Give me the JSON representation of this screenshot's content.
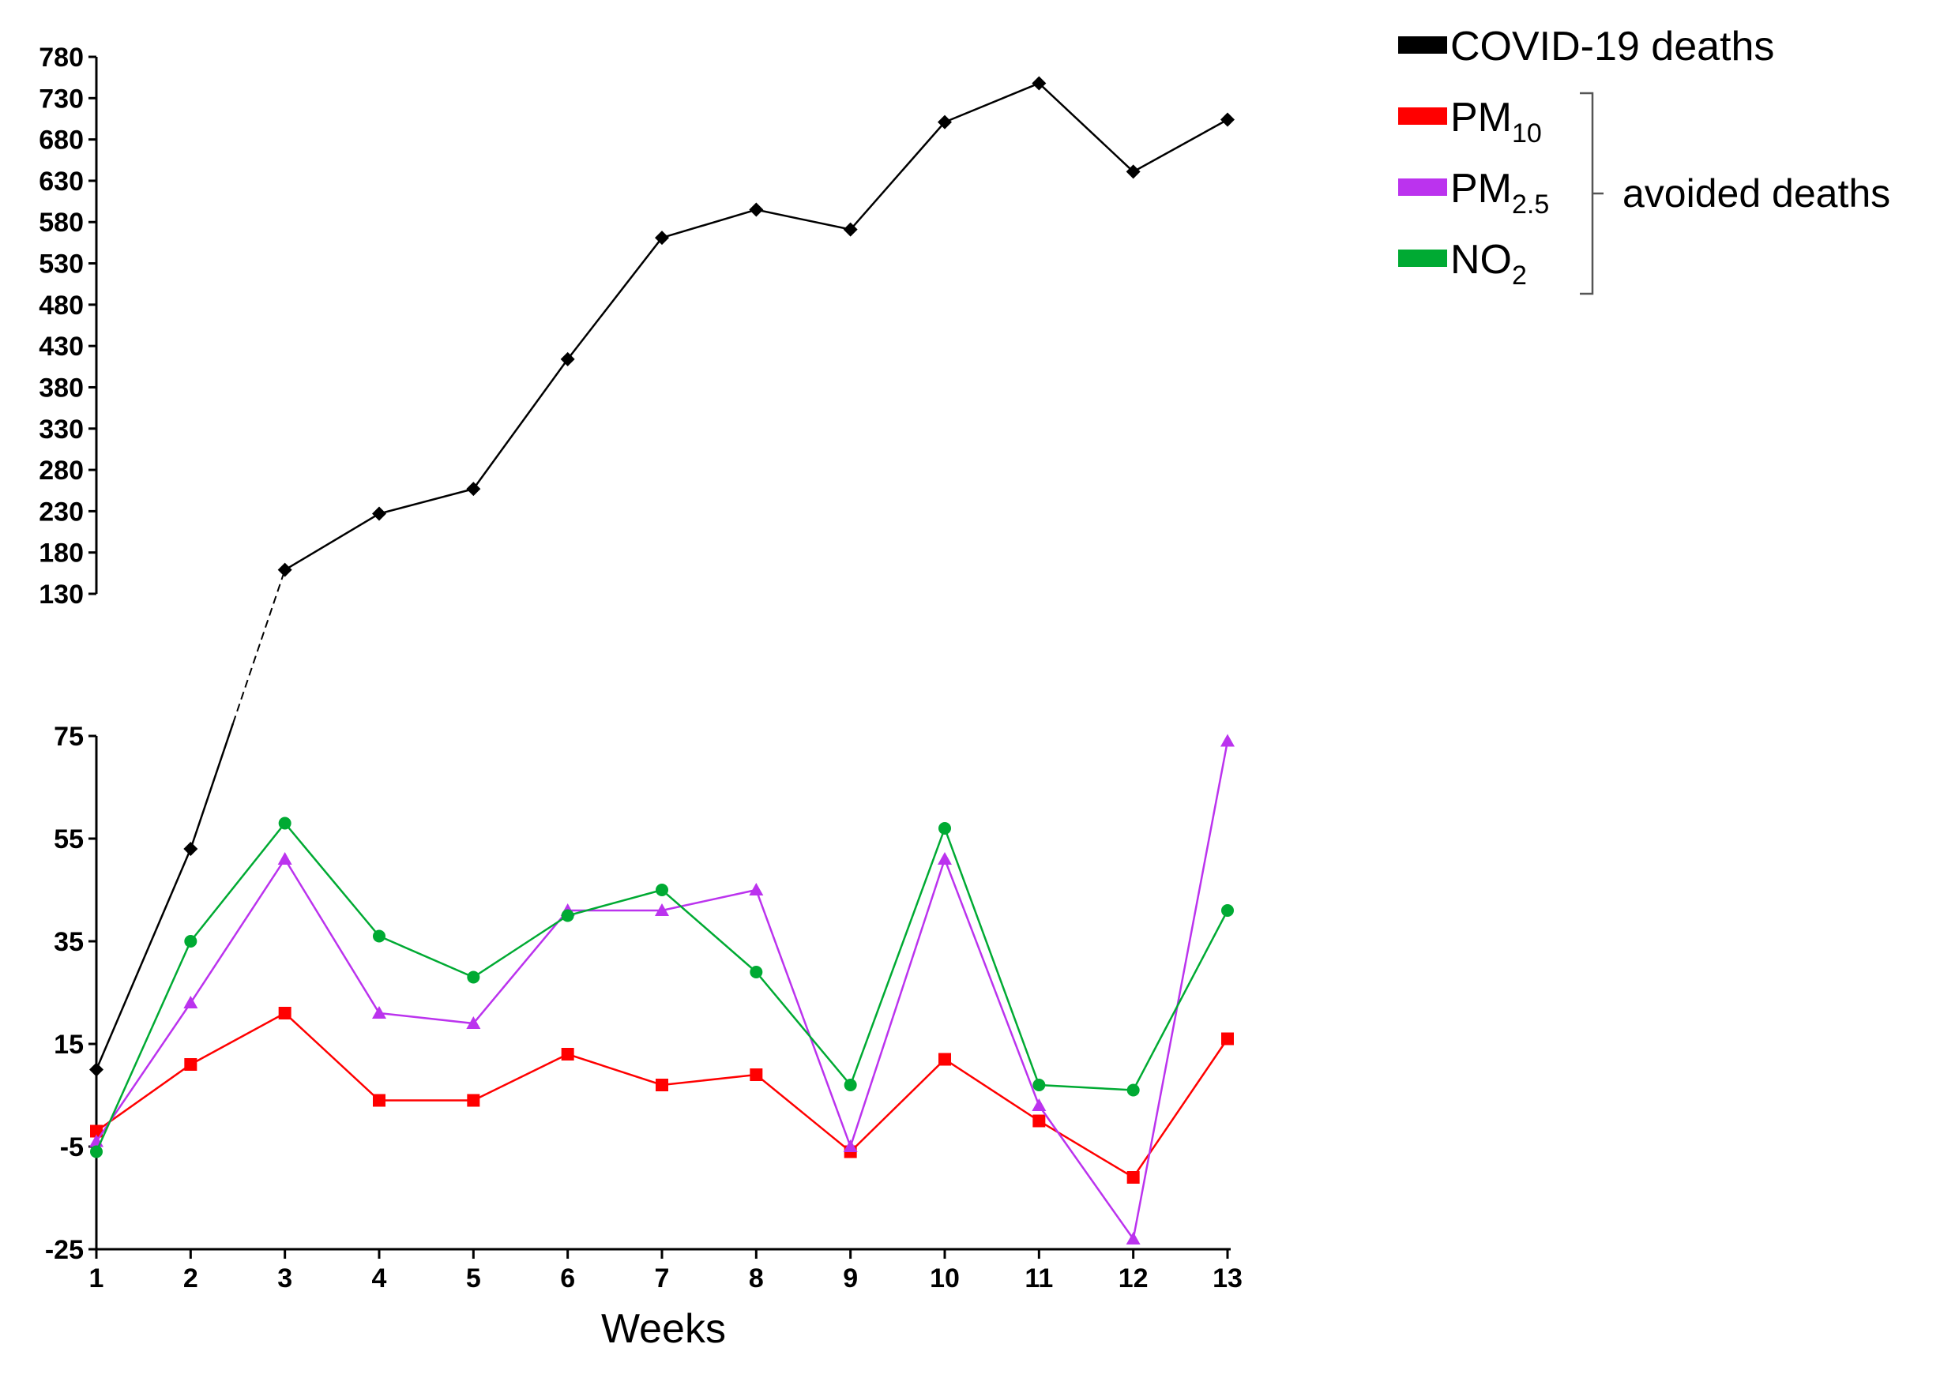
{
  "chart_data": {
    "type": "line",
    "title": "",
    "xlabel": "Weeks",
    "ylabel": "",
    "categories": [
      "1",
      "2",
      "3",
      "4",
      "5",
      "6",
      "7",
      "8",
      "9",
      "10",
      "11",
      "12",
      "13"
    ],
    "upper_axis": {
      "ylim": [
        130,
        780
      ],
      "ticks": [
        780,
        730,
        680,
        630,
        580,
        530,
        480,
        430,
        380,
        330,
        280,
        230,
        180,
        130
      ]
    },
    "lower_axis": {
      "ylim": [
        -25,
        75
      ],
      "ticks": [
        75,
        55,
        35,
        15,
        -5,
        -25
      ]
    },
    "series": [
      {
        "name": "COVID-19 deaths",
        "label_main": "COVID-19 deaths",
        "label_sub": "",
        "color": "#000000",
        "marker": "diamond",
        "values": [
          10,
          53,
          159,
          227,
          257,
          414,
          561,
          595,
          571,
          701,
          748,
          641,
          704
        ]
      },
      {
        "name": "PM10",
        "label_main": "PM",
        "label_sub": "10",
        "color": "#ff0000",
        "marker": "square",
        "values": [
          -2,
          11,
          21,
          4,
          4,
          13,
          7,
          9,
          -6,
          12,
          0,
          -11,
          16
        ]
      },
      {
        "name": "PM2.5",
        "label_main": "PM",
        "label_sub": "2.5",
        "color": "#bb33ee",
        "marker": "triangle",
        "values": [
          -4,
          23,
          51,
          21,
          19,
          41,
          41,
          45,
          -5,
          51,
          3,
          -23,
          74
        ]
      },
      {
        "name": "NO2",
        "label_main": "NO",
        "label_sub": "2",
        "color": "#00aa33",
        "marker": "circle",
        "values": [
          -6,
          35,
          58,
          36,
          28,
          40,
          45,
          29,
          7,
          57,
          7,
          6,
          41
        ]
      }
    ],
    "legend_group_label": "avoided deaths",
    "legend_position": "top-right"
  }
}
